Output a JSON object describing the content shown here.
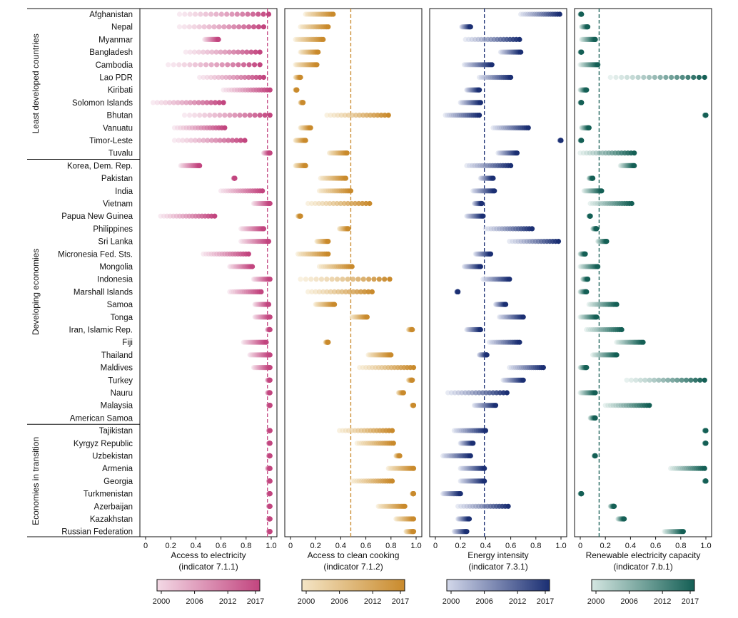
{
  "chart_data": {
    "type": "scatter",
    "description_y": "countries (categorical)",
    "year_range": [
      2000,
      2017
    ],
    "groups": [
      {
        "name": "Least developed countries",
        "countries": [
          "Afghanistan",
          "Nepal",
          "Myanmar",
          "Bangladesh",
          "Cambodia",
          "Lao PDR",
          "Kiribati",
          "Solomon Islands",
          "Bhutan",
          "Vanuatu",
          "Timor-Leste",
          "Tuvalu"
        ]
      },
      {
        "name": "Developing economies",
        "countries": [
          "Korea, Dem. Rep.",
          "Pakistan",
          "India",
          "Vietnam",
          "Papua New Guinea",
          "Philippines",
          "Sri Lanka",
          "Micronesia Fed. Sts.",
          "Mongolia",
          "Indonesia",
          "Marshall Islands",
          "Samoa",
          "Tonga",
          "Iran, Islamic Rep.",
          "Fiji",
          "Thailand",
          "Maldives",
          "Turkey",
          "Nauru",
          "Malaysia",
          "American Samoa"
        ]
      },
      {
        "name": "Economies in transition",
        "countries": [
          "Tajikistan",
          "Kyrgyz Republic",
          "Uzbekistan",
          "Armenia",
          "Georgia",
          "Turkmenistan",
          "Azerbaijan",
          "Kazakhstan",
          "Russian Federation"
        ]
      }
    ],
    "panels": [
      {
        "id": "electricity",
        "xlabel": "Access to electricity",
        "xlabel2": "(indicator 7.1.1)",
        "xlim": [
          0,
          1
        ],
        "ticks": [
          "0",
          "0.2",
          "0.4",
          "0.6",
          "0.8",
          "1.0"
        ],
        "reference_line": 0.97,
        "color_light": "#f3d9e5",
        "color_dark": "#c2457f",
        "ranges": [
          [
            0.27,
            0.98
          ],
          [
            0.27,
            0.94
          ],
          [
            0.47,
            0.58
          ],
          [
            0.32,
            0.91
          ],
          [
            0.18,
            0.91
          ],
          [
            0.43,
            0.94
          ],
          [
            0.62,
            0.99
          ],
          [
            0.06,
            0.62
          ],
          [
            0.31,
            0.99
          ],
          [
            0.23,
            0.63
          ],
          [
            0.23,
            0.79
          ],
          [
            0.94,
            0.99
          ],
          [
            0.28,
            0.43
          ],
          [
            0.7,
            0.71
          ],
          [
            0.6,
            0.93
          ],
          [
            0.86,
            0.99
          ],
          [
            0.12,
            0.55
          ],
          [
            0.76,
            0.94
          ],
          [
            0.76,
            0.98
          ],
          [
            0.46,
            0.82
          ],
          [
            0.67,
            0.85
          ],
          [
            0.86,
            0.99
          ],
          [
            0.67,
            0.92
          ],
          [
            0.87,
            0.98
          ],
          [
            0.87,
            0.99
          ],
          [
            0.97,
            0.99
          ],
          [
            0.78,
            0.96
          ],
          [
            0.83,
            0.99
          ],
          [
            0.86,
            0.99
          ],
          [
            0.97,
            0.99
          ],
          [
            0.97,
            0.99
          ],
          [
            0.98,
            0.99
          ],
          [
            null,
            null
          ],
          [
            0.98,
            0.99
          ],
          [
            0.98,
            0.99
          ],
          [
            0.98,
            0.99
          ],
          [
            0.97,
            0.99
          ],
          [
            0.98,
            0.99
          ],
          [
            0.98,
            0.99
          ],
          [
            0.98,
            0.99
          ],
          [
            0.98,
            0.99
          ],
          [
            0.98,
            0.99
          ]
        ]
      },
      {
        "id": "cooking",
        "xlabel": "Access to clean cooking",
        "xlabel2": "(indicator 7.1.2)",
        "xlim": [
          0,
          1
        ],
        "ticks": [
          "0",
          "0.2",
          "0.4",
          "0.6",
          "0.8",
          "1.0"
        ],
        "reference_line": 0.48,
        "color_light": "#f4e5c6",
        "color_dark": "#c98a2c",
        "ranges": [
          [
            0.12,
            0.34
          ],
          [
            0.08,
            0.3
          ],
          [
            0.04,
            0.26
          ],
          [
            0.08,
            0.22
          ],
          [
            0.04,
            0.21
          ],
          [
            0.04,
            0.08
          ],
          [
            0.04,
            0.05
          ],
          [
            0.08,
            0.1
          ],
          [
            0.29,
            0.78
          ],
          [
            0.08,
            0.16
          ],
          [
            0.04,
            0.12
          ],
          [
            0.31,
            0.45
          ],
          [
            0.04,
            0.12
          ],
          [
            0.24,
            0.44
          ],
          [
            0.23,
            0.48
          ],
          [
            0.14,
            0.63
          ],
          [
            0.06,
            0.08
          ],
          [
            0.39,
            0.46
          ],
          [
            0.21,
            0.3
          ],
          [
            0.06,
            0.3
          ],
          [
            0.23,
            0.49
          ],
          [
            0.08,
            0.79
          ],
          [
            0.14,
            0.65
          ],
          [
            0.2,
            0.35
          ],
          [
            0.49,
            0.61
          ],
          [
            0.94,
            0.97
          ],
          [
            0.28,
            0.3
          ],
          [
            0.62,
            0.8
          ],
          [
            0.55,
            0.98
          ],
          [
            0.94,
            0.97
          ],
          [
            0.86,
            0.9
          ],
          [
            0.97,
            0.98
          ],
          [
            null,
            null
          ],
          [
            0.39,
            0.81
          ],
          [
            0.53,
            0.82
          ],
          [
            0.84,
            0.87
          ],
          [
            0.78,
            0.98
          ],
          [
            0.49,
            0.81
          ],
          [
            0.97,
            0.98
          ],
          [
            0.7,
            0.91
          ],
          [
            0.84,
            0.98
          ],
          [
            0.92,
            0.98
          ]
        ]
      },
      {
        "id": "intensity",
        "xlabel": "Energy intensity",
        "xlabel2": "(indicator 7.3.1)",
        "xlim": [
          0,
          1
        ],
        "ticks": [
          "0",
          "0.2",
          "0.4",
          "0.6",
          "0.8",
          "1.0"
        ],
        "reference_line": 0.39,
        "color_light": "#d3d8ea",
        "color_dark": "#1b2f73",
        "ranges": [
          [
            0.68,
            0.99
          ],
          [
            0.21,
            0.28
          ],
          [
            0.24,
            0.67
          ],
          [
            0.52,
            0.68
          ],
          [
            0.23,
            0.45
          ],
          [
            0.35,
            0.6
          ],
          [
            0.25,
            0.35
          ],
          [
            0.2,
            0.36
          ],
          [
            0.08,
            0.35
          ],
          [
            0.46,
            0.74
          ],
          [
            0.99,
            1.0
          ],
          [
            0.5,
            0.65
          ],
          [
            0.25,
            0.6
          ],
          [
            0.36,
            0.46
          ],
          [
            0.3,
            0.47
          ],
          [
            0.31,
            0.37
          ],
          [
            0.25,
            0.38
          ],
          [
            0.4,
            0.77
          ],
          [
            0.59,
            0.98
          ],
          [
            0.32,
            0.44
          ],
          [
            0.23,
            0.36
          ],
          [
            0.38,
            0.59
          ],
          [
            0.17,
            0.18
          ],
          [
            0.48,
            0.56
          ],
          [
            0.51,
            0.7
          ],
          [
            0.25,
            0.36
          ],
          [
            0.43,
            0.67
          ],
          [
            0.35,
            0.41
          ],
          [
            0.59,
            0.86
          ],
          [
            0.54,
            0.7
          ],
          [
            0.1,
            0.57
          ],
          [
            0.31,
            0.48
          ],
          [
            null,
            null
          ],
          [
            0.15,
            0.4
          ],
          [
            0.2,
            0.3
          ],
          [
            0.06,
            0.28
          ],
          [
            0.2,
            0.39
          ],
          [
            0.2,
            0.39
          ],
          [
            0.06,
            0.2
          ],
          [
            0.18,
            0.58
          ],
          [
            0.18,
            0.27
          ],
          [
            0.15,
            0.25
          ]
        ]
      },
      {
        "id": "renewable",
        "xlabel": "Renewable electricity capacity",
        "xlabel2": "(indicator 7.b.1)",
        "xlim": [
          0,
          1
        ],
        "ticks": [
          "0",
          "0.2",
          "0.4",
          "0.6",
          "0.8",
          "1.0"
        ],
        "reference_line": 0.15,
        "color_light": "#d4e6e1",
        "color_dark": "#145f55",
        "ranges": [
          [
            0.0,
            0.01
          ],
          [
            0.01,
            0.06
          ],
          [
            0.01,
            0.12
          ],
          [
            0.0,
            0.01
          ],
          [
            0.0,
            0.14
          ],
          [
            0.24,
            0.99
          ],
          [
            0.0,
            0.05
          ],
          [
            0.0,
            0.01
          ],
          [
            0.99,
            1.0
          ],
          [
            0.01,
            0.07
          ],
          [
            0.0,
            0.01
          ],
          [
            0.0,
            0.43
          ],
          [
            0.32,
            0.43
          ],
          [
            0.07,
            0.1
          ],
          [
            0.03,
            0.17
          ],
          [
            0.08,
            0.41
          ],
          [
            0.07,
            0.08
          ],
          [
            0.1,
            0.13
          ],
          [
            0.14,
            0.21
          ],
          [
            0.0,
            0.04
          ],
          [
            0.0,
            0.14
          ],
          [
            0.02,
            0.06
          ],
          [
            0.0,
            0.05
          ],
          [
            0.07,
            0.29
          ],
          [
            0.0,
            0.13
          ],
          [
            0.05,
            0.33
          ],
          [
            0.29,
            0.5
          ],
          [
            0.1,
            0.29
          ],
          [
            0.0,
            0.05
          ],
          [
            0.37,
            0.99
          ],
          [
            0.0,
            0.12
          ],
          [
            0.2,
            0.55
          ],
          [
            0.08,
            0.12
          ],
          [
            0.99,
            1.0
          ],
          [
            0.99,
            1.0
          ],
          [
            0.11,
            0.12
          ],
          [
            0.72,
            0.99
          ],
          [
            0.99,
            1.0
          ],
          [
            0.0,
            0.01
          ],
          [
            0.24,
            0.27
          ],
          [
            0.3,
            0.35
          ],
          [
            0.67,
            0.82
          ]
        ]
      }
    ],
    "colorbar_ticks": [
      "2000",
      "2006",
      "2012",
      "2017"
    ]
  }
}
